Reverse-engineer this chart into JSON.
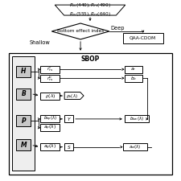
{
  "white": "#ffffff",
  "light_gray": "#c8c8c8",
  "black": "#000000",
  "title_top": "$R_{rs}(440), R_{rs}(490)$\n$R_{rs}(555), R_{rs}(640)$",
  "diamond_text": "Bottom effect index",
  "deep_text": "Deep",
  "shallow_text": "Shallow",
  "qaa_text": "QAA-CDOM",
  "sbop_text": "SBOP",
  "labels_left": [
    "H",
    "B",
    "P",
    "M"
  ],
  "figsize": [
    2.25,
    2.25
  ],
  "dpi": 100
}
